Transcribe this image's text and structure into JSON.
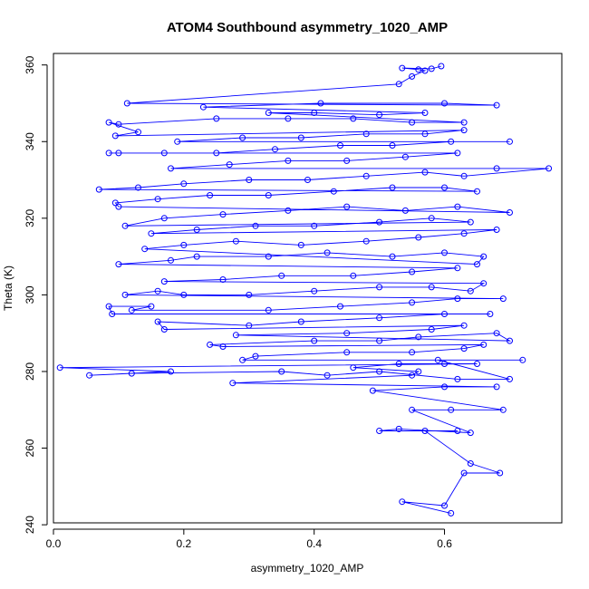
{
  "chart_data": {
    "type": "scatter",
    "title": "ATOM4 Southbound asymmetry_1020_AMP",
    "xlabel": "asymmetry_1020_AMP",
    "ylabel": "Theta (K)",
    "xlim": [
      0.0,
      0.78
    ],
    "ylim": [
      240.5,
      363
    ],
    "x_ticks": [
      0.0,
      0.2,
      0.4,
      0.6
    ],
    "x_tick_labels": [
      "0.0",
      "0.2",
      "0.4",
      "0.6"
    ],
    "y_ticks": [
      240,
      260,
      280,
      300,
      320,
      340,
      360
    ],
    "y_tick_labels": [
      "240",
      "260",
      "280",
      "300",
      "320",
      "340",
      "360"
    ],
    "grid": false,
    "series": [
      {
        "color": "#0000ff",
        "style": "line+points",
        "points": [
          [
            0.61,
            243
          ],
          [
            0.535,
            246
          ],
          [
            0.6,
            245
          ],
          [
            0.63,
            253.5
          ],
          [
            0.685,
            253.5
          ],
          [
            0.64,
            256
          ],
          [
            0.57,
            264.5
          ],
          [
            0.62,
            264.5
          ],
          [
            0.5,
            264.5
          ],
          [
            0.53,
            265
          ],
          [
            0.64,
            264
          ],
          [
            0.55,
            270
          ],
          [
            0.61,
            270
          ],
          [
            0.69,
            270
          ],
          [
            0.49,
            275
          ],
          [
            0.6,
            276
          ],
          [
            0.68,
            276
          ],
          [
            0.275,
            277
          ],
          [
            0.55,
            279
          ],
          [
            0.56,
            280
          ],
          [
            0.46,
            281
          ],
          [
            0.53,
            282
          ],
          [
            0.6,
            282
          ],
          [
            0.65,
            282
          ],
          [
            0.01,
            281
          ],
          [
            0.18,
            280
          ],
          [
            0.055,
            279
          ],
          [
            0.12,
            279.5
          ],
          [
            0.35,
            280
          ],
          [
            0.42,
            279
          ],
          [
            0.5,
            280
          ],
          [
            0.62,
            278
          ],
          [
            0.7,
            278
          ],
          [
            0.59,
            283
          ],
          [
            0.72,
            283
          ],
          [
            0.29,
            283
          ],
          [
            0.31,
            284
          ],
          [
            0.45,
            285
          ],
          [
            0.55,
            285
          ],
          [
            0.63,
            286
          ],
          [
            0.66,
            287
          ],
          [
            0.26,
            286.5
          ],
          [
            0.24,
            287
          ],
          [
            0.4,
            288
          ],
          [
            0.5,
            288
          ],
          [
            0.56,
            289
          ],
          [
            0.68,
            290
          ],
          [
            0.7,
            288
          ],
          [
            0.28,
            289.5
          ],
          [
            0.45,
            290
          ],
          [
            0.58,
            291
          ],
          [
            0.63,
            292
          ],
          [
            0.17,
            291
          ],
          [
            0.16,
            293
          ],
          [
            0.3,
            292
          ],
          [
            0.38,
            293
          ],
          [
            0.5,
            294
          ],
          [
            0.6,
            295
          ],
          [
            0.67,
            295
          ],
          [
            0.09,
            295
          ],
          [
            0.085,
            297
          ],
          [
            0.15,
            297
          ],
          [
            0.12,
            296
          ],
          [
            0.33,
            296
          ],
          [
            0.44,
            297
          ],
          [
            0.55,
            298
          ],
          [
            0.62,
            299
          ],
          [
            0.69,
            299
          ],
          [
            0.11,
            300
          ],
          [
            0.16,
            301
          ],
          [
            0.2,
            300
          ],
          [
            0.3,
            300
          ],
          [
            0.4,
            301
          ],
          [
            0.5,
            302
          ],
          [
            0.58,
            302
          ],
          [
            0.64,
            301
          ],
          [
            0.66,
            303
          ],
          [
            0.17,
            303.5
          ],
          [
            0.26,
            304
          ],
          [
            0.35,
            305
          ],
          [
            0.46,
            305
          ],
          [
            0.55,
            306
          ],
          [
            0.62,
            307
          ],
          [
            0.1,
            308
          ],
          [
            0.18,
            309
          ],
          [
            0.22,
            310
          ],
          [
            0.33,
            310
          ],
          [
            0.42,
            311
          ],
          [
            0.52,
            310
          ],
          [
            0.6,
            311
          ],
          [
            0.66,
            310
          ],
          [
            0.65,
            308
          ],
          [
            0.14,
            312
          ],
          [
            0.2,
            313
          ],
          [
            0.28,
            314
          ],
          [
            0.38,
            313
          ],
          [
            0.48,
            314
          ],
          [
            0.56,
            315
          ],
          [
            0.63,
            316
          ],
          [
            0.68,
            317
          ],
          [
            0.15,
            316
          ],
          [
            0.22,
            317
          ],
          [
            0.31,
            318
          ],
          [
            0.4,
            318
          ],
          [
            0.5,
            319
          ],
          [
            0.58,
            320
          ],
          [
            0.64,
            319
          ],
          [
            0.11,
            318
          ],
          [
            0.17,
            320
          ],
          [
            0.26,
            321
          ],
          [
            0.36,
            322
          ],
          [
            0.45,
            323
          ],
          [
            0.54,
            322
          ],
          [
            0.62,
            323
          ],
          [
            0.7,
            321.5
          ],
          [
            0.1,
            323
          ],
          [
            0.095,
            324
          ],
          [
            0.16,
            325
          ],
          [
            0.24,
            326
          ],
          [
            0.33,
            326
          ],
          [
            0.43,
            327
          ],
          [
            0.52,
            328
          ],
          [
            0.6,
            328
          ],
          [
            0.65,
            327
          ],
          [
            0.07,
            327.5
          ],
          [
            0.13,
            328
          ],
          [
            0.2,
            329
          ],
          [
            0.3,
            330
          ],
          [
            0.39,
            330
          ],
          [
            0.48,
            331
          ],
          [
            0.57,
            332
          ],
          [
            0.63,
            331
          ],
          [
            0.76,
            333
          ],
          [
            0.68,
            333
          ],
          [
            0.18,
            333
          ],
          [
            0.27,
            334
          ],
          [
            0.36,
            335
          ],
          [
            0.45,
            335
          ],
          [
            0.54,
            336
          ],
          [
            0.62,
            337
          ],
          [
            0.085,
            337
          ],
          [
            0.1,
            337
          ],
          [
            0.17,
            337
          ],
          [
            0.25,
            337
          ],
          [
            0.34,
            338
          ],
          [
            0.44,
            339
          ],
          [
            0.52,
            339
          ],
          [
            0.61,
            340
          ],
          [
            0.7,
            340
          ],
          [
            0.19,
            340
          ],
          [
            0.29,
            341
          ],
          [
            0.38,
            341
          ],
          [
            0.48,
            342
          ],
          [
            0.57,
            342
          ],
          [
            0.63,
            343
          ],
          [
            0.095,
            341.5
          ],
          [
            0.13,
            342.5
          ],
          [
            0.085,
            345
          ],
          [
            0.1,
            344.5
          ],
          [
            0.25,
            346
          ],
          [
            0.36,
            346
          ],
          [
            0.46,
            346
          ],
          [
            0.55,
            345
          ],
          [
            0.63,
            345
          ],
          [
            0.33,
            347.5
          ],
          [
            0.4,
            347.5
          ],
          [
            0.5,
            347
          ],
          [
            0.57,
            347.5
          ],
          [
            0.23,
            349
          ],
          [
            0.41,
            350
          ],
          [
            0.6,
            350
          ],
          [
            0.68,
            349.5
          ],
          [
            0.113,
            350
          ],
          [
            0.53,
            355
          ],
          [
            0.55,
            357
          ],
          [
            0.57,
            358.5
          ],
          [
            0.56,
            358.8
          ],
          [
            0.535,
            359.2
          ],
          [
            0.58,
            359
          ],
          [
            0.595,
            359.7
          ]
        ]
      }
    ]
  }
}
